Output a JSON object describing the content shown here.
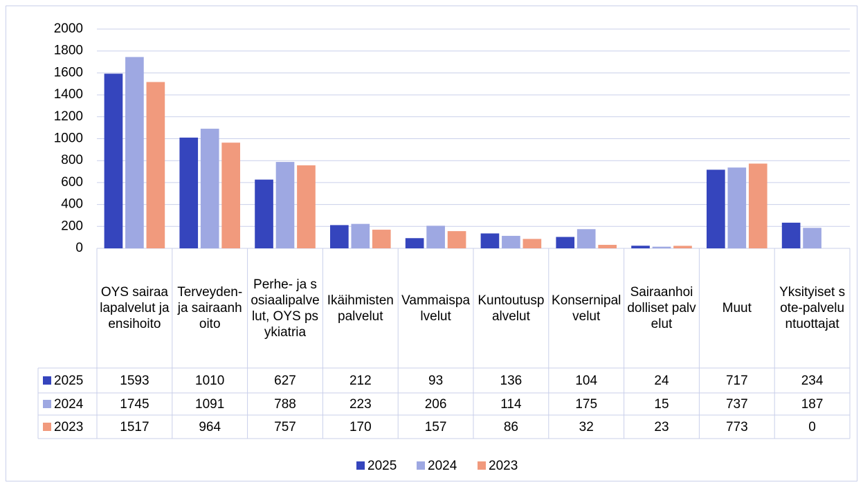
{
  "chart_data": {
    "type": "bar",
    "categories": [
      "OYS sairaalapalvelut ja ensihoito",
      "Terveyden- ja sairaanhoito",
      "Perhe- ja sosiaalipalvelut, OYS psykiatria",
      "Ikäihmisten palvelut",
      "Vammaispalvelut",
      "Kuntoutuspalvelut",
      "Konsernipalvelut",
      "Sairaanhoidolliset palvelut",
      "Muut",
      "Yksityiset sote-palveluntuottajat"
    ],
    "series": [
      {
        "name": "2025",
        "color": "#3545bd",
        "values": [
          1593,
          1010,
          627,
          212,
          93,
          136,
          104,
          24,
          717,
          234
        ]
      },
      {
        "name": "2024",
        "color": "#9ea8e2",
        "values": [
          1745,
          1091,
          788,
          223,
          206,
          114,
          175,
          15,
          737,
          187
        ]
      },
      {
        "name": "2023",
        "color": "#f19a7d",
        "values": [
          1517,
          964,
          757,
          170,
          157,
          86,
          32,
          23,
          773,
          0
        ]
      }
    ],
    "ylim": [
      0,
      2000
    ],
    "yticks": [
      0,
      200,
      400,
      600,
      800,
      1000,
      1200,
      1400,
      1600,
      1800,
      2000
    ],
    "grid": true,
    "legend": "bottom"
  }
}
